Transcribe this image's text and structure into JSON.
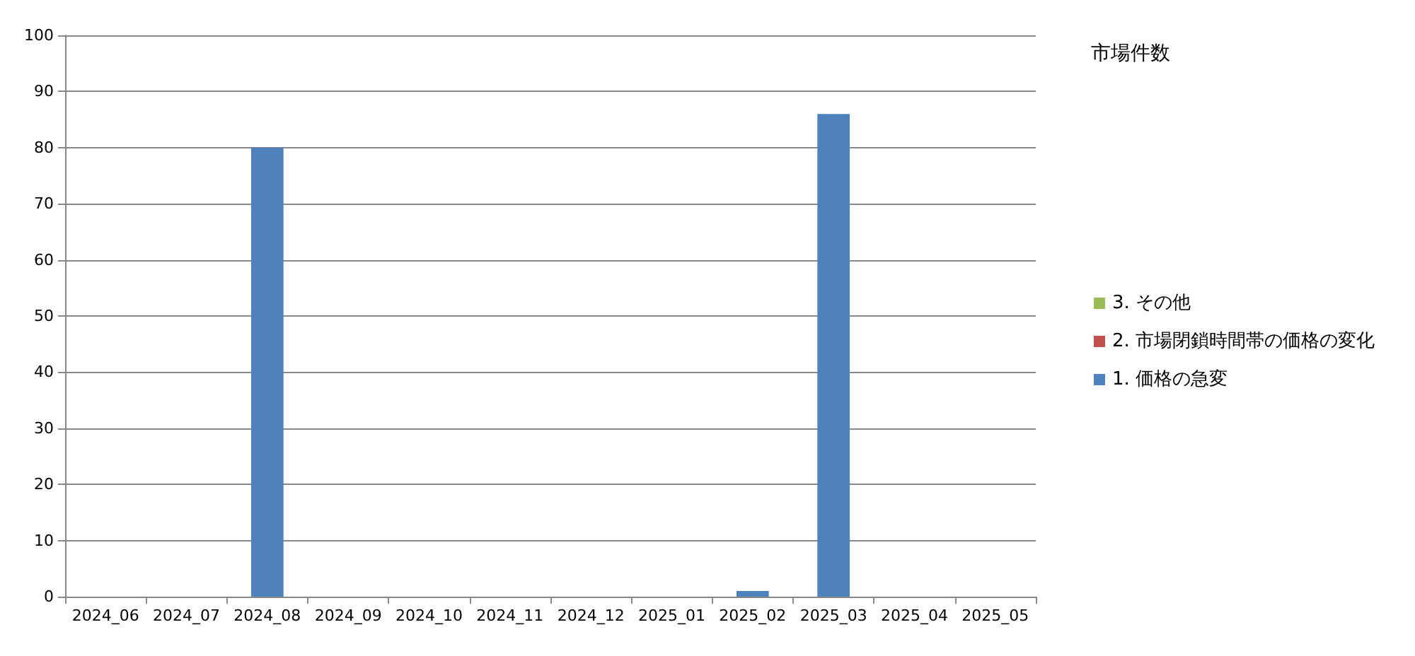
{
  "chart_data": {
    "type": "bar",
    "stacked": true,
    "title": "市場件数",
    "categories": [
      "2024_06",
      "2024_07",
      "2024_08",
      "2024_09",
      "2024_10",
      "2024_11",
      "2024_12",
      "2025_01",
      "2025_02",
      "2025_03",
      "2025_04",
      "2025_05"
    ],
    "series": [
      {
        "name": "1. 価格の急変",
        "color": "#4f81bd",
        "values": [
          0,
          0,
          80,
          0,
          0,
          0,
          0,
          0,
          1,
          86,
          0,
          0
        ]
      },
      {
        "name": "2. 市場閉鎖時間帯の価格の変化",
        "color": "#c0504d",
        "values": [
          0,
          0,
          0,
          0,
          0,
          0,
          0,
          0,
          0,
          0,
          0,
          0
        ]
      },
      {
        "name": "3. その他",
        "color": "#9bbb59",
        "values": [
          0,
          0,
          0,
          0,
          0,
          0,
          0,
          0,
          0,
          0,
          0,
          0
        ]
      }
    ],
    "ylim": [
      0,
      100
    ],
    "yticks": [
      0,
      10,
      20,
      30,
      40,
      50,
      60,
      70,
      80,
      90,
      100
    ],
    "grid": "y",
    "legend": "right"
  }
}
